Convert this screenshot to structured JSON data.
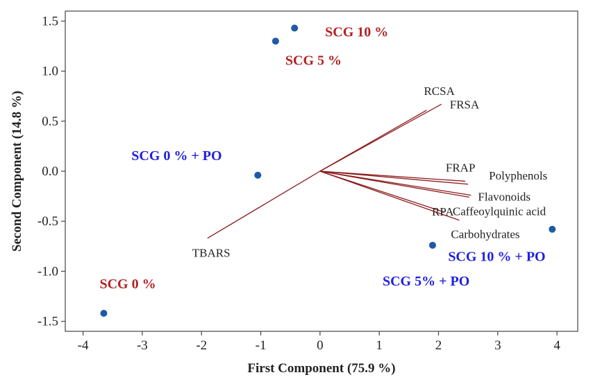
{
  "chart_data": {
    "type": "scatter",
    "subtype": "pca-biplot",
    "xlabel": "First Component (75.9 %)",
    "ylabel": "Second Component (14.8 %)",
    "xlim": [
      -4.3,
      4.35
    ],
    "ylim": [
      -1.6,
      1.6
    ],
    "xticks": [
      -4,
      -3,
      -2,
      -1,
      0,
      1,
      2,
      3,
      4
    ],
    "yticks": [
      -1.5,
      -1.0,
      -0.5,
      0.0,
      0.5,
      1.0,
      1.5
    ],
    "xtick_labels": [
      "-4",
      "-3",
      "-2",
      "-1",
      "0",
      "1",
      "2",
      "3",
      "4"
    ],
    "ytick_labels": [
      "-1.5",
      "-1.0",
      "-0.5",
      "0.0",
      "0.5",
      "1.0",
      "1.5"
    ],
    "point_color": "#1f5aa6",
    "vector_color": "#8b1a1a",
    "grid": false,
    "samples": [
      {
        "name": "SCG 0 %",
        "x": -3.65,
        "y": -1.42,
        "label_color": "#b22222"
      },
      {
        "name": "SCG 5 %",
        "x": -0.75,
        "y": 1.3,
        "label_color": "#b22222"
      },
      {
        "name": "SCG 10 %",
        "x": -0.43,
        "y": 1.43,
        "label_color": "#b22222"
      },
      {
        "name": "SCG 0 % + PO",
        "x": -1.05,
        "y": -0.04,
        "label_color": "#1f1fe0"
      },
      {
        "name": "SCG 5% + PO",
        "x": 1.9,
        "y": -0.74,
        "label_color": "#1f1fe0"
      },
      {
        "name": "SCG 10 % + PO",
        "x": 3.92,
        "y": -0.58,
        "label_color": "#1f1fe0"
      }
    ],
    "loadings": [
      {
        "name": "RCSA",
        "x": 1.8,
        "y": 0.61
      },
      {
        "name": "FRSA",
        "x": 2.05,
        "y": 0.67
      },
      {
        "name": "FRAP",
        "x": 2.45,
        "y": -0.1
      },
      {
        "name": "Polyphenols",
        "x": 2.5,
        "y": -0.13
      },
      {
        "name": "Flavonoids",
        "x": 2.55,
        "y": -0.24
      },
      {
        "name": "Caffeoylquinic acid",
        "x": 2.52,
        "y": -0.26
      },
      {
        "name": "RPA",
        "x": 2.1,
        "y": -0.41
      },
      {
        "name": "Carbohydrates",
        "x": 2.35,
        "y": -0.49
      },
      {
        "name": "TBARS",
        "x": -1.9,
        "y": -0.67
      }
    ]
  }
}
